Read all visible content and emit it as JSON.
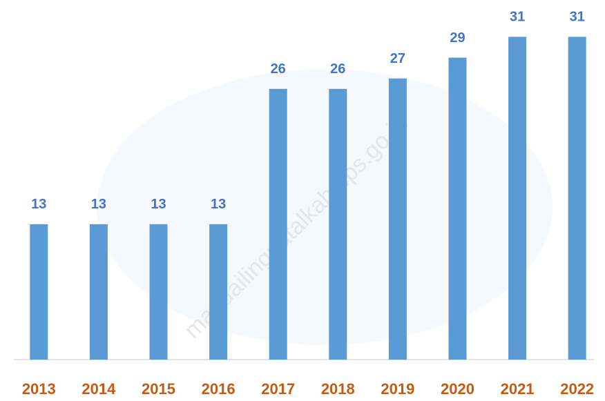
{
  "chart_data": {
    "type": "bar",
    "categories": [
      "2013",
      "2014",
      "2015",
      "2016",
      "2017",
      "2018",
      "2019",
      "2020",
      "2021",
      "2022"
    ],
    "values": [
      13,
      13,
      13,
      13,
      26,
      26,
      27,
      29,
      31,
      31
    ],
    "color": "#5b9bd5",
    "ylim": [
      0,
      35
    ],
    "watermark": "mandailingnatalkab.bps.go.id"
  }
}
